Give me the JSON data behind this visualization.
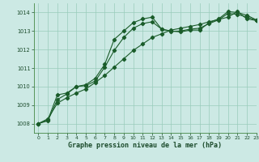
{
  "xlabel": "Graphe pression niveau de la mer (hPa)",
  "ylim": [
    1007.5,
    1014.5
  ],
  "xlim": [
    -0.5,
    23
  ],
  "yticks": [
    1008,
    1009,
    1010,
    1011,
    1012,
    1013,
    1014
  ],
  "xticks": [
    0,
    1,
    2,
    3,
    4,
    5,
    6,
    7,
    8,
    9,
    10,
    11,
    12,
    13,
    14,
    15,
    16,
    17,
    18,
    19,
    20,
    21,
    22,
    23
  ],
  "bg_color": "#cce9e4",
  "grid_color": "#99ccbb",
  "line_color": "#1a5c2a",
  "series1": {
    "x": [
      0,
      1,
      2,
      3,
      4,
      5,
      6,
      7,
      8,
      9,
      10,
      11,
      12,
      13,
      14,
      15,
      16,
      17,
      18,
      19,
      20,
      21,
      22,
      23
    ],
    "y": [
      1008.0,
      1008.15,
      1009.3,
      1009.6,
      1010.0,
      1010.1,
      1010.45,
      1011.2,
      1012.55,
      1013.0,
      1013.45,
      1013.65,
      1013.75,
      1013.1,
      1013.0,
      1012.95,
      1013.05,
      1013.05,
      1013.45,
      1013.65,
      1014.05,
      1014.0,
      1013.85,
      1013.6
    ]
  },
  "series2": {
    "x": [
      0,
      1,
      2,
      3,
      4,
      5,
      6,
      7,
      8,
      9,
      10,
      11,
      12,
      13,
      14,
      15,
      16,
      17,
      18,
      19,
      20,
      21,
      22,
      23
    ],
    "y": [
      1008.0,
      1008.2,
      1009.55,
      1009.65,
      1010.0,
      1010.05,
      1010.3,
      1011.05,
      1011.95,
      1012.65,
      1013.15,
      1013.4,
      1013.5,
      1013.1,
      1012.98,
      1013.0,
      1013.1,
      1013.15,
      1013.4,
      1013.6,
      1013.95,
      1013.9,
      1013.75,
      1013.58
    ]
  },
  "series3": {
    "x": [
      0,
      1,
      2,
      3,
      4,
      5,
      6,
      7,
      8,
      9,
      10,
      11,
      12,
      13,
      14,
      15,
      16,
      17,
      18,
      19,
      20,
      21,
      22,
      23
    ],
    "y": [
      1008.0,
      1008.26,
      1009.1,
      1009.4,
      1009.65,
      1009.87,
      1010.22,
      1010.6,
      1011.05,
      1011.5,
      1011.95,
      1012.3,
      1012.65,
      1012.85,
      1013.05,
      1013.15,
      1013.25,
      1013.35,
      1013.5,
      1013.62,
      1013.75,
      1014.05,
      1013.65,
      1013.57
    ]
  }
}
